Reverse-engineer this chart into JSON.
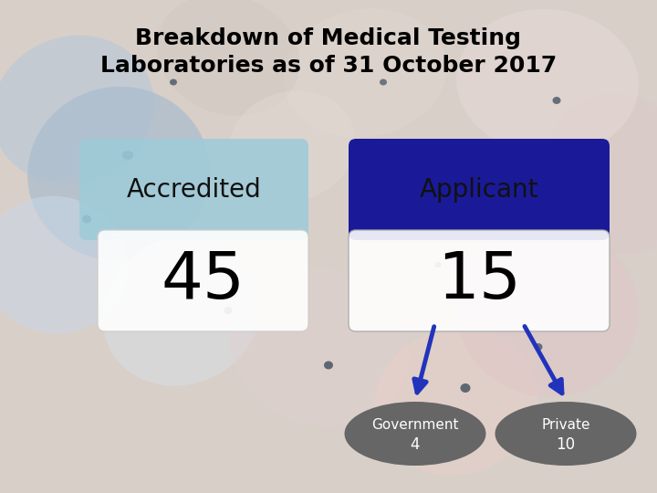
{
  "title_line1": "Breakdown of Medical Testing",
  "title_line2": "Laboratories as of 31 October 2017",
  "title_fontsize": 18,
  "title_color": "#000000",
  "box1_label": "Accredited",
  "box1_value": "45",
  "box1_color": "#9ecbd8",
  "box2_label": "Applicant",
  "box2_value": "15",
  "box2_color": "#1a1a99",
  "box2_label_color": "#000000",
  "value_box_color": "#ffffff",
  "ellipse1_label": "Government",
  "ellipse1_value": "4",
  "ellipse2_label": "Private",
  "ellipse2_value": "10",
  "ellipse_color": "#666666",
  "ellipse_text_color": "#ffffff",
  "arrow_color": "#2233bb",
  "connector_color": "#3344aa",
  "bg_base": "#d8cfc8",
  "cell_colors": [
    "#b8ccd8",
    "#d0b8b8",
    "#c8c0b8",
    "#a8c0d0",
    "#e0d0c8",
    "#c0b0c0"
  ],
  "dot_color": "#334455"
}
